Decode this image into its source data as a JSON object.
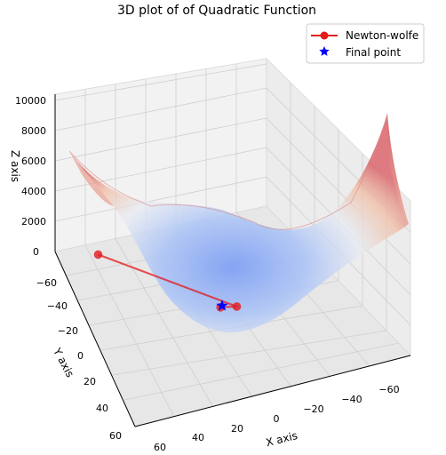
{
  "chart_data": {
    "type": "surface3d",
    "title": "3D plot of of Quadratic Function",
    "xlabel": "X axis",
    "ylabel": "Y axis",
    "zlabel": "Z axis",
    "xticks": [
      "60",
      "40",
      "20",
      "0",
      "−20",
      "−40",
      "−60"
    ],
    "yticks": [
      "−60",
      "−40",
      "−20",
      "0",
      "20",
      "40",
      "60"
    ],
    "zticks": [
      "0",
      "2000",
      "4000",
      "6000",
      "8000",
      "10000"
    ],
    "zlim": [
      0,
      10000
    ],
    "surface": {
      "function": "quadratic",
      "colormap": "coolwarm",
      "alpha": 0.6
    },
    "series": [
      {
        "name": "Newton-wolfe",
        "color": "#e41a1c",
        "marker": "circle",
        "points": [
          {
            "x": 40,
            "y": -50,
            "z": 1500
          },
          {
            "x": -5,
            "y": 5,
            "z": 100
          },
          {
            "x": 1,
            "y": 1,
            "z": 5
          }
        ]
      },
      {
        "name": "Final point",
        "color": "#0000ff",
        "marker": "star",
        "points": [
          {
            "x": 0,
            "y": 0,
            "z": 0
          }
        ]
      }
    ],
    "legend": "top-right",
    "grid": true
  }
}
